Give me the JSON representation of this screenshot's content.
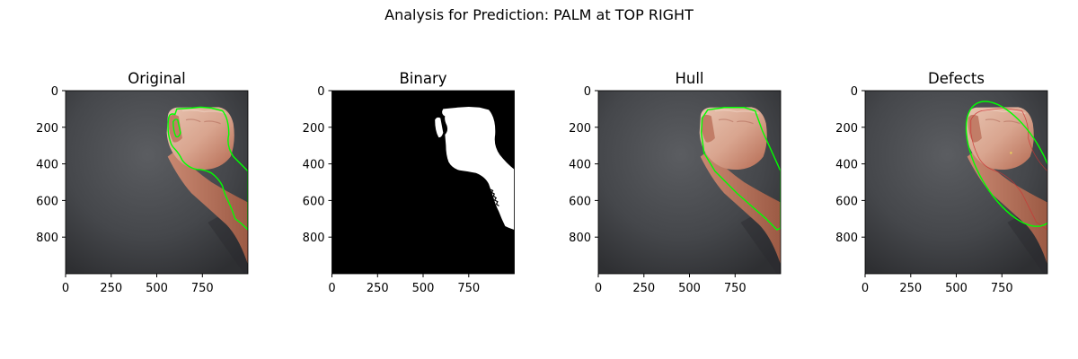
{
  "figure": {
    "suptitle": "Analysis for Prediction: PALM at TOP RIGHT"
  },
  "panels": [
    {
      "id": "original",
      "title": "Original",
      "image": "photo-with-contour"
    },
    {
      "id": "binary",
      "title": "Binary",
      "image": "binary-mask"
    },
    {
      "id": "hull",
      "title": "Hull",
      "image": "photo-with-convex-hull"
    },
    {
      "id": "defects",
      "title": "Defects",
      "image": "photo-with-ellipse-and-defects"
    }
  ],
  "chart_data": [
    {
      "type": "image",
      "title": "Original",
      "xlim": [
        0,
        1000
      ],
      "ylim": [
        1000,
        0
      ],
      "xticks": [
        0,
        250,
        500,
        750
      ],
      "yticks": [
        0,
        200,
        400,
        600,
        800
      ],
      "overlay": "contour",
      "overlay_color": "#00ff00"
    },
    {
      "type": "image",
      "title": "Binary",
      "xlim": [
        0,
        1000
      ],
      "ylim": [
        1000,
        0
      ],
      "xticks": [
        0,
        250,
        500,
        750
      ],
      "yticks": [
        0,
        200,
        400,
        600,
        800
      ],
      "overlay": "mask"
    },
    {
      "type": "image",
      "title": "Hull",
      "xlim": [
        0,
        1000
      ],
      "ylim": [
        1000,
        0
      ],
      "xticks": [
        0,
        250,
        500,
        750
      ],
      "yticks": [
        0,
        200,
        400,
        600,
        800
      ],
      "overlay": "convex-hull",
      "overlay_color": "#00ff00"
    },
    {
      "type": "image",
      "title": "Defects",
      "xlim": [
        0,
        1000
      ],
      "ylim": [
        1000,
        0
      ],
      "xticks": [
        0,
        250,
        500,
        750
      ],
      "yticks": [
        0,
        200,
        400,
        600,
        800
      ],
      "overlay": "ellipse",
      "overlay_color": "#00ff00",
      "defect_color": "#cc3333"
    }
  ],
  "colors": {
    "contour": "#00ff00",
    "defects": "#cc3333",
    "background_dark": "#3d3e41",
    "skin": "#d8a38e"
  }
}
